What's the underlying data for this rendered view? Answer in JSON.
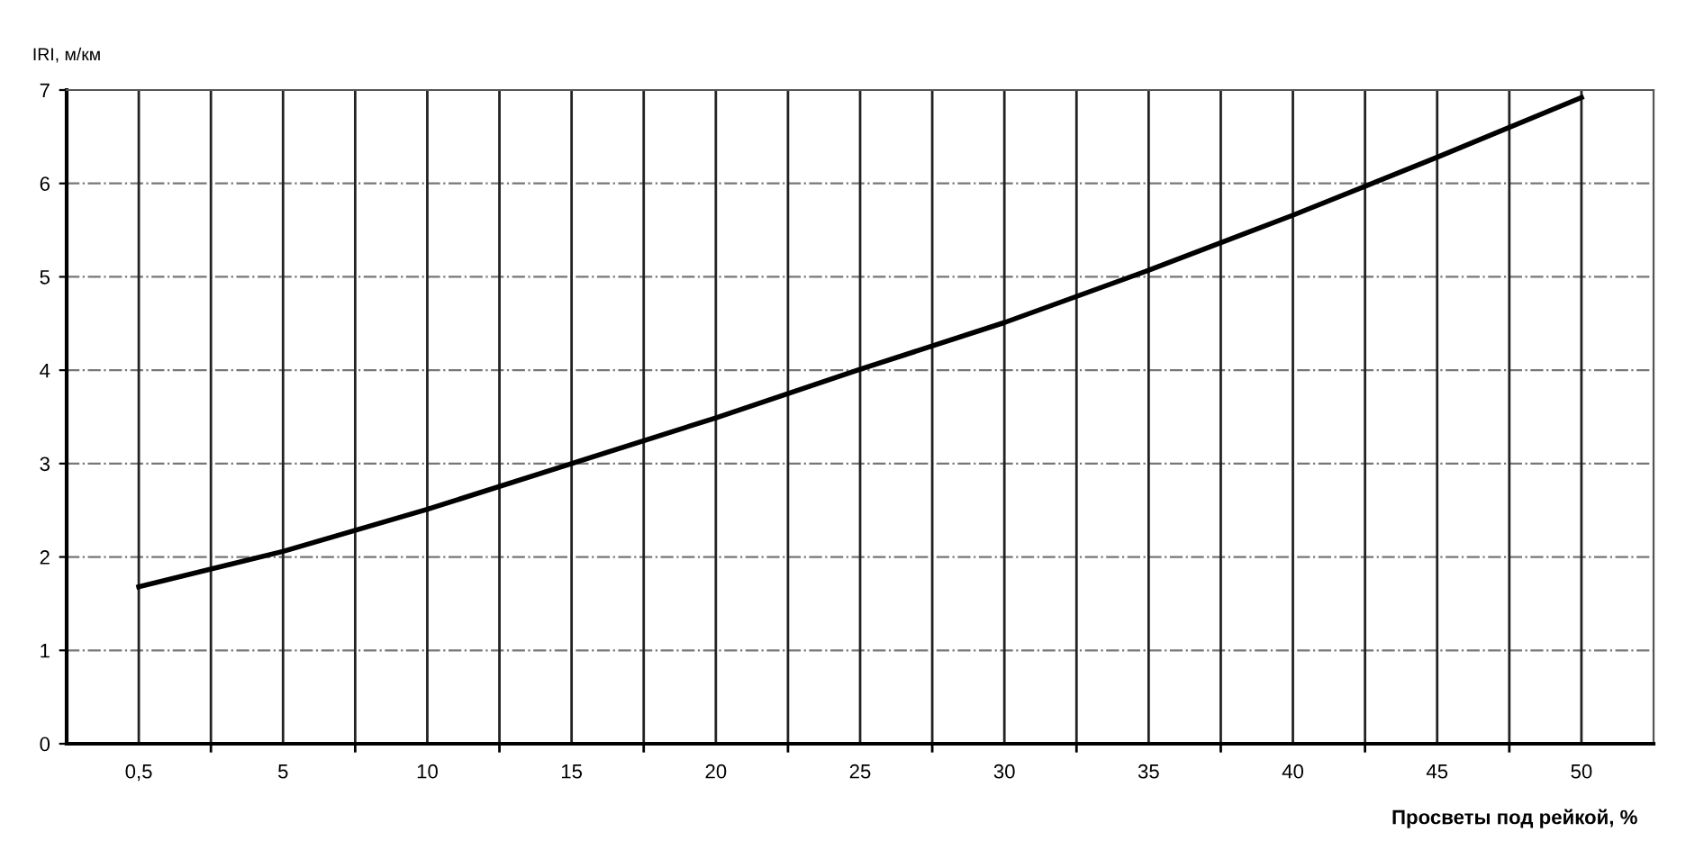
{
  "chart_data": {
    "type": "line",
    "xlabel": "Просветы под рейкой, %",
    "ylabel": "IRI, м/км",
    "categories": [
      "0,5",
      "5",
      "10",
      "15",
      "20",
      "25",
      "30",
      "35",
      "40",
      "45",
      "50"
    ],
    "series": [
      {
        "color": "#000000",
        "values": [
          1.68,
          2.06,
          2.51,
          3.0,
          3.49,
          4.01,
          4.51,
          5.07,
          5.66,
          6.28,
          6.92
        ]
      }
    ],
    "ylim": [
      0,
      7
    ],
    "yticks": [
      0,
      1,
      2,
      3,
      4,
      5,
      6,
      7
    ],
    "grid": true,
    "marker": "none",
    "line_style": "solid"
  }
}
